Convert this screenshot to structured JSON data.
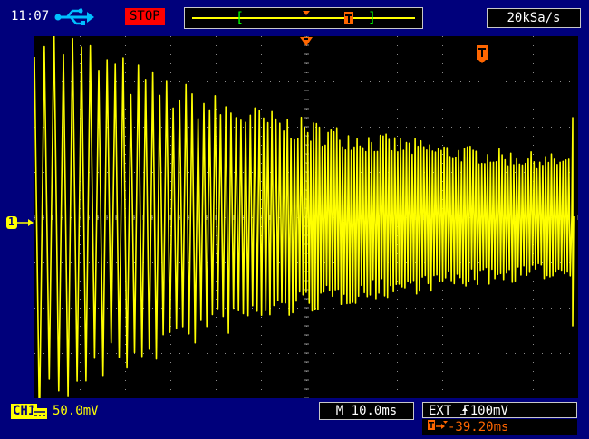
{
  "status_bar": {
    "time": "11:07",
    "usb_icon": "usb-icon",
    "run_state": "STOP",
    "sample_rate": "20kSa/s"
  },
  "timebase_indicator": {
    "left_bracket": "[",
    "right_bracket": "]",
    "trigger_marker_icon": "trigger-t-icon",
    "position_marker_icon": "down-triangle-icon"
  },
  "markers": {
    "channel_marker": "1",
    "trigger_marker": "T"
  },
  "bottom_bar": {
    "ch1_label": "CH1",
    "ch1_coupling_icon": "dc-coupling-icon",
    "ch1_scale": "50.0mV",
    "timebase": "M 10.0ms",
    "trigger_source": "EXT",
    "trigger_slope_icon": "rising-edge-icon",
    "trigger_level": "100mV",
    "trigger_offset": "-39.20ms"
  },
  "colors": {
    "bezel": "#00007b",
    "trace": "#ffff00",
    "stop": "#ff0000",
    "trigger": "#ff6600",
    "grid": "#8c8c8c"
  }
}
